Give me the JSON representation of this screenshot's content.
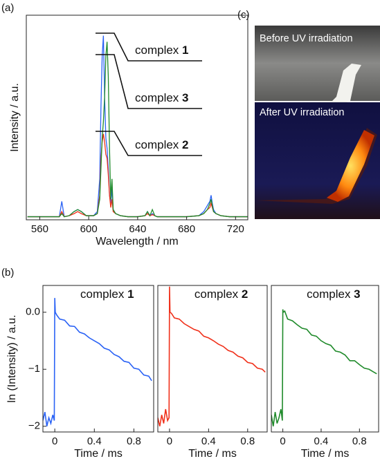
{
  "chart_data": [
    {
      "type": "line",
      "panel_label": "(a)",
      "x_label": "Wavelength / nm",
      "y_label": "Intensity / a.u.",
      "x": [
        550,
        576,
        578,
        580,
        584,
        588,
        591,
        594,
        598,
        604,
        607,
        609,
        610,
        611,
        612,
        613,
        614,
        615,
        616,
        617,
        618,
        619,
        620,
        622,
        626,
        632,
        640,
        646,
        648,
        650,
        652,
        654,
        656,
        660,
        670,
        680,
        690,
        694,
        697,
        699,
        700,
        701,
        702,
        704,
        708,
        715,
        730
      ],
      "series": [
        {
          "name": "complex 1",
          "color": "#2a62f5",
          "values": [
            1.5,
            1.5,
            9,
            1.5,
            2,
            4,
            5,
            4,
            2,
            2,
            4,
            20,
            55,
            80,
            90,
            60,
            40,
            35,
            25,
            12,
            8,
            15,
            5,
            3,
            2,
            1.5,
            1.5,
            2,
            4,
            2,
            3,
            2,
            1.5,
            1.5,
            1.5,
            1.5,
            2,
            4,
            7,
            9,
            12,
            8,
            5,
            3,
            2,
            1.5,
            1.5
          ]
        },
        {
          "name": "complex 2",
          "color": "#f0301a",
          "values": [
            1.5,
            1.5,
            4,
            1.5,
            2,
            3,
            4,
            3,
            2,
            2,
            3,
            12,
            30,
            38,
            42,
            38,
            32,
            30,
            22,
            12,
            6,
            10,
            4,
            3,
            2,
            1.5,
            1.5,
            2,
            3,
            2,
            2.5,
            2,
            1.5,
            1.5,
            1.5,
            1.5,
            2,
            3,
            5,
            6,
            8,
            6,
            4,
            3,
            2,
            1.5,
            1.5
          ]
        },
        {
          "name": "complex 3",
          "color": "#1f8a2a",
          "values": [
            1.5,
            1.5,
            3,
            1.5,
            2,
            4,
            5,
            4,
            2,
            2,
            3,
            10,
            25,
            40,
            48,
            60,
            80,
            87,
            70,
            35,
            10,
            20,
            5,
            3,
            2,
            1.5,
            1.5,
            2,
            4,
            2,
            5,
            2,
            1.5,
            1.5,
            1.5,
            1.5,
            2,
            3,
            5,
            8,
            10,
            7,
            4,
            3,
            2,
            1.5,
            1.5
          ]
        }
      ],
      "xlim": [
        549,
        730
      ],
      "xticks": [
        560,
        600,
        640,
        680,
        720
      ],
      "ylim": [
        0,
        100
      ]
    },
    {
      "type": "line",
      "panel_label": "(b)",
      "title": "complex 1",
      "x_label": "Time / ms",
      "y_label": "ln (Intensity) / a.u.",
      "x": [
        -0.12,
        -0.1,
        -0.08,
        -0.06,
        -0.04,
        -0.02,
        -0.005,
        0,
        0.005,
        0.02,
        0.05,
        0.1,
        0.15,
        0.2,
        0.25,
        0.3,
        0.35,
        0.4,
        0.45,
        0.5,
        0.55,
        0.6,
        0.65,
        0.7,
        0.75,
        0.8,
        0.85,
        0.9,
        0.95,
        0.98
      ],
      "series": [
        {
          "name": "complex 1",
          "color": "#2a62f5",
          "values": [
            -1.9,
            -1.75,
            -2.0,
            -1.85,
            -1.95,
            -1.8,
            -1.9,
            0.25,
            0.0,
            -0.05,
            -0.12,
            -0.14,
            -0.24,
            -0.25,
            -0.35,
            -0.38,
            -0.45,
            -0.5,
            -0.55,
            -0.63,
            -0.66,
            -0.74,
            -0.78,
            -0.86,
            -0.88,
            -0.98,
            -1.0,
            -1.1,
            -1.12,
            -1.2
          ]
        }
      ],
      "xlim": [
        -0.12,
        1.0
      ],
      "xticks": [
        0,
        0.4,
        0.8
      ],
      "ylim": [
        -2.1,
        0.47
      ],
      "yticks": [
        {
          "value": 0,
          "label": "0.0"
        },
        {
          "value": -1,
          "label": "−1"
        },
        {
          "value": -2,
          "label": "−2"
        }
      ]
    },
    {
      "type": "line",
      "title": "complex 2",
      "x_label": "Time / ms",
      "x": [
        -0.12,
        -0.1,
        -0.08,
        -0.06,
        -0.04,
        -0.02,
        -0.005,
        0,
        0.005,
        0.02,
        0.05,
        0.1,
        0.15,
        0.2,
        0.25,
        0.3,
        0.35,
        0.4,
        0.45,
        0.5,
        0.55,
        0.6,
        0.65,
        0.7,
        0.75,
        0.8,
        0.85,
        0.9,
        0.95,
        0.98
      ],
      "series": [
        {
          "name": "complex 2",
          "color": "#f0301a",
          "values": [
            -1.85,
            -2.0,
            -1.8,
            -1.95,
            -1.7,
            -1.9,
            -1.85,
            0.45,
            0.0,
            -0.02,
            -0.1,
            -0.12,
            -0.2,
            -0.25,
            -0.3,
            -0.33,
            -0.42,
            -0.45,
            -0.5,
            -0.56,
            -0.6,
            -0.67,
            -0.7,
            -0.77,
            -0.8,
            -0.88,
            -0.9,
            -0.98,
            -1.0,
            -1.05
          ]
        }
      ],
      "xlim": [
        -0.12,
        1.0
      ],
      "xticks": [
        0,
        0.4,
        0.8
      ],
      "ylim": [
        -2.1,
        0.47
      ]
    },
    {
      "type": "line",
      "title": "complex 3",
      "x_label": "Time / ms",
      "x": [
        -0.12,
        -0.1,
        -0.08,
        -0.06,
        -0.04,
        -0.02,
        -0.005,
        0,
        0.005,
        0.02,
        0.05,
        0.1,
        0.15,
        0.2,
        0.25,
        0.3,
        0.35,
        0.4,
        0.45,
        0.5,
        0.55,
        0.6,
        0.65,
        0.7,
        0.75,
        0.8,
        0.85,
        0.9,
        0.95,
        0.98
      ],
      "series": [
        {
          "name": "complex 3",
          "color": "#1f8a2a",
          "values": [
            -1.8,
            -2.0,
            -1.75,
            -1.95,
            -1.85,
            -1.7,
            -1.9,
            0.05,
            0.0,
            0.02,
            -0.12,
            -0.15,
            -0.22,
            -0.28,
            -0.3,
            -0.4,
            -0.42,
            -0.5,
            -0.55,
            -0.58,
            -0.68,
            -0.7,
            -0.75,
            -0.85,
            -0.85,
            -0.92,
            -0.98,
            -1.0,
            -1.05,
            -1.08
          ]
        }
      ],
      "xlim": [
        -0.12,
        1.0
      ],
      "xticks": [
        0,
        0.4,
        0.8
      ],
      "ylim": [
        -2.1,
        0.47
      ]
    }
  ],
  "photo_panel": {
    "panel_label": "(c)",
    "photos": [
      {
        "caption": "Before UV irradiation"
      },
      {
        "caption": "After UV irradiation"
      }
    ]
  }
}
